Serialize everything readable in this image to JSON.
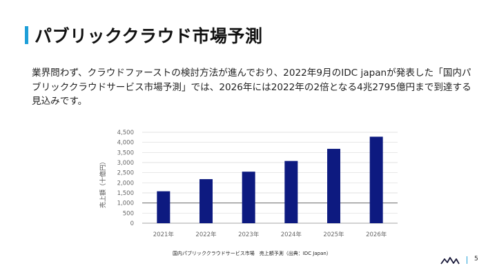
{
  "slide": {
    "title": "パブリッククラウド市場予測",
    "body": "業界問わず、クラウドファーストの検討方法が進んでおり、2022年9月のIDC japanが発表した「国内パブリッククラウドサービス市場予測」では、2026年には2022年の2倍となる4兆2795億円まで到達する見込みです。",
    "caption": "国内パブリッククラウドサービス市場　売上額予測（出典：IDC Japan）",
    "page_number": "5",
    "accent_color": "#1e9fd8",
    "bar_color": "#0d1a80"
  },
  "chart_data": {
    "type": "bar",
    "title": "",
    "xlabel": "",
    "ylabel": "売上額（十億円）",
    "categories": [
      "2021年",
      "2022年",
      "2023年",
      "2024年",
      "2025年",
      "2026年"
    ],
    "values": [
      1580,
      2180,
      2550,
      3080,
      3680,
      4280
    ],
    "ylim": [
      0,
      4500
    ],
    "yticks": [
      0,
      500,
      1000,
      1500,
      2000,
      2500,
      3000,
      3500,
      4000,
      4500
    ],
    "ytick_labels": [
      "0",
      "500",
      "1,000",
      "1,500",
      "2,000",
      "2,500",
      "3,000",
      "3,500",
      "4,000",
      "4,500"
    ],
    "grid": true
  }
}
